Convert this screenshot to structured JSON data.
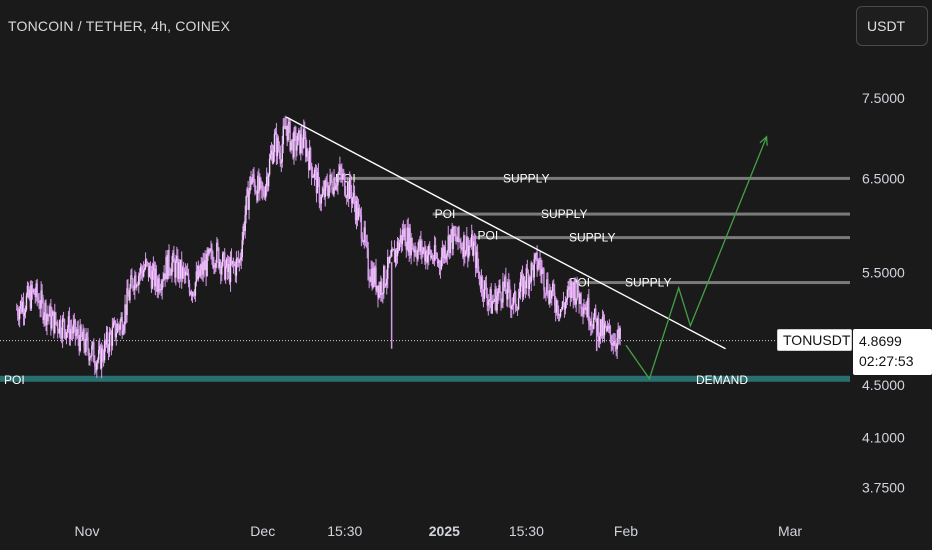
{
  "header": {
    "title": "TONCOIN / TETHER, 4h, COINEX",
    "currency_button": "USDT"
  },
  "price_label": {
    "symbol": "TONUSDT",
    "last_price": "4.8699",
    "countdown": "02:27:53"
  },
  "colors": {
    "background": "#1a1a1a",
    "candle": "#d69be8",
    "trendline": "#ffffff",
    "supply_line": "#7a7a7a",
    "demand_line": "#2a6e70",
    "projection": "#43a047"
  },
  "chart_data": {
    "type": "candlestick",
    "y_scale": "log",
    "y_ticks": [
      7.5,
      6.5,
      5.5,
      4.5,
      4.1,
      3.75
    ],
    "y_tick_labels": [
      "7.5000",
      "6.5000",
      "5.5000",
      "4.5000",
      "4.1000",
      "3.7500"
    ],
    "x_tick_labels": [
      {
        "label": "Nov",
        "bold": false
      },
      {
        "label": "Dec",
        "bold": false
      },
      {
        "label": "15:30",
        "bold": false
      },
      {
        "label": "2025",
        "bold": true
      },
      {
        "label": "15:30",
        "bold": false
      },
      {
        "label": "Feb",
        "bold": false
      },
      {
        "label": "Mar",
        "bold": false
      }
    ],
    "x_tick_dates": [
      "2024-11-01",
      "2024-12-01",
      "2024-12-15",
      "2025-01-01",
      "2025-01-15",
      "2025-02-01",
      "2025-03-01"
    ],
    "x_range": [
      "2024-10-20",
      "2025-03-15"
    ],
    "last_price": 4.8699,
    "price_path": [
      [
        "2024-10-20",
        5.15
      ],
      [
        "2024-10-23",
        5.3
      ],
      [
        "2024-10-26",
        5.05
      ],
      [
        "2024-10-29",
        4.98
      ],
      [
        "2024-11-01",
        4.82
      ],
      [
        "2024-11-03",
        4.7
      ],
      [
        "2024-11-05",
        4.9
      ],
      [
        "2024-11-07",
        5.05
      ],
      [
        "2024-11-09",
        5.45
      ],
      [
        "2024-11-11",
        5.55
      ],
      [
        "2024-11-13",
        5.4
      ],
      [
        "2024-11-15",
        5.6
      ],
      [
        "2024-11-17",
        5.5
      ],
      [
        "2024-11-19",
        5.35
      ],
      [
        "2024-11-21",
        5.55
      ],
      [
        "2024-11-23",
        5.7
      ],
      [
        "2024-11-25",
        5.5
      ],
      [
        "2024-11-27",
        5.6
      ],
      [
        "2024-11-28",
        6.1
      ],
      [
        "2024-11-29",
        6.5
      ],
      [
        "2024-12-01",
        6.3
      ],
      [
        "2024-12-03",
        6.95
      ],
      [
        "2024-12-04",
        6.8
      ],
      [
        "2024-12-05",
        7.15
      ],
      [
        "2024-12-06",
        6.9
      ],
      [
        "2024-12-08",
        6.95
      ],
      [
        "2024-12-10",
        6.5
      ],
      [
        "2024-12-11",
        6.25
      ],
      [
        "2024-12-12",
        6.4
      ],
      [
        "2024-12-14",
        6.55
      ],
      [
        "2024-12-16",
        6.35
      ],
      [
        "2024-12-18",
        5.95
      ],
      [
        "2024-12-19",
        5.55
      ],
      [
        "2024-12-21",
        5.35
      ],
      [
        "2024-12-23",
        5.6
      ],
      [
        "2024-12-25",
        5.9
      ],
      [
        "2024-12-27",
        5.75
      ],
      [
        "2024-12-29",
        5.7
      ],
      [
        "2024-12-31",
        5.6
      ],
      [
        "2025-01-02",
        5.85
      ],
      [
        "2025-01-04",
        5.8
      ],
      [
        "2025-01-06",
        5.75
      ],
      [
        "2025-01-07",
        5.45
      ],
      [
        "2025-01-09",
        5.2
      ],
      [
        "2025-01-11",
        5.35
      ],
      [
        "2025-01-13",
        5.2
      ],
      [
        "2025-01-15",
        5.45
      ],
      [
        "2025-01-17",
        5.6
      ],
      [
        "2025-01-19",
        5.3
      ],
      [
        "2025-01-21",
        5.15
      ],
      [
        "2025-01-23",
        5.35
      ],
      [
        "2025-01-25",
        5.2
      ],
      [
        "2025-01-27",
        5.0
      ],
      [
        "2025-01-29",
        4.92
      ],
      [
        "2025-01-31",
        4.87
      ]
    ],
    "wicks": [
      {
        "date": "2024-12-19",
        "low": 5.42
      },
      {
        "date": "2024-12-23",
        "low": 4.8
      },
      {
        "date": "2025-01-27",
        "low": 4.78
      }
    ],
    "trendline": [
      [
        "2024-12-05",
        7.25
      ],
      [
        "2025-02-18",
        4.8
      ]
    ],
    "levels": [
      {
        "type": "supply",
        "price": 6.5,
        "start": "2024-12-13",
        "poi_label": "POI",
        "zone_label": "SUPPLY"
      },
      {
        "type": "supply",
        "price": 6.1,
        "start": "2024-12-30",
        "poi_label": "POI",
        "zone_label": "SUPPLY"
      },
      {
        "type": "supply",
        "price": 5.85,
        "start": "2025-01-06",
        "poi_label": "",
        "zone_label": "SUPPLY"
      },
      {
        "type": "supply",
        "price": 5.4,
        "start": "2025-01-22",
        "poi_label": "POI",
        "zone_label": "SUPPLY"
      },
      {
        "type": "demand",
        "price": 4.55,
        "start": "2024-10-20",
        "poi_label": "POI",
        "zone_label": "DEMAND"
      }
    ],
    "extra_poi_labels": [
      {
        "date": "2025-01-07",
        "price": 5.87,
        "label": "POI"
      }
    ],
    "projection": [
      [
        "2025-02-01",
        4.83
      ],
      [
        "2025-02-05",
        4.55
      ],
      [
        "2025-02-10",
        5.35
      ],
      [
        "2025-02-12",
        5.0
      ],
      [
        "2025-02-25",
        7.0
      ]
    ]
  }
}
